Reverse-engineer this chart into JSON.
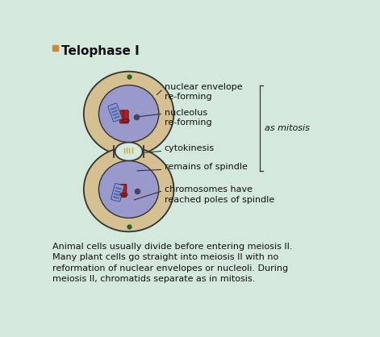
{
  "title": "Telophase I",
  "bg_color": "#d4e8dc",
  "cell_outer_color": "#d4c090",
  "cell_inner_color": "#9999cc",
  "cell_border_color": "#333333",
  "spindle_color": "#c8a840",
  "chromosome_red_color": "#aa2020",
  "chromosome_blue_color": "#445599",
  "nucleolus_color": "#444466",
  "dot_color": "#226622",
  "labels": {
    "nuclear_envelope": "nuclear envelope\nre-forming",
    "nucleolus": "nucleolus\nre-forming",
    "cytokinesis": "cytokinesis",
    "spindle_remains": "remains of spindle",
    "chromosomes": "chromosomes have\nreached poles of spindle",
    "as_mitosis": "as mitosis"
  },
  "footer_text": "Animal cells usually divide before entering meiosis II.\nMany plant cells go straight into meiosis II with no\nreformation of nuclear envelopes or nucleoli. During\nmeiosis II, chromatids separate as in mitosis.",
  "title_fontsize": 11,
  "label_fontsize": 8,
  "footer_fontsize": 8
}
